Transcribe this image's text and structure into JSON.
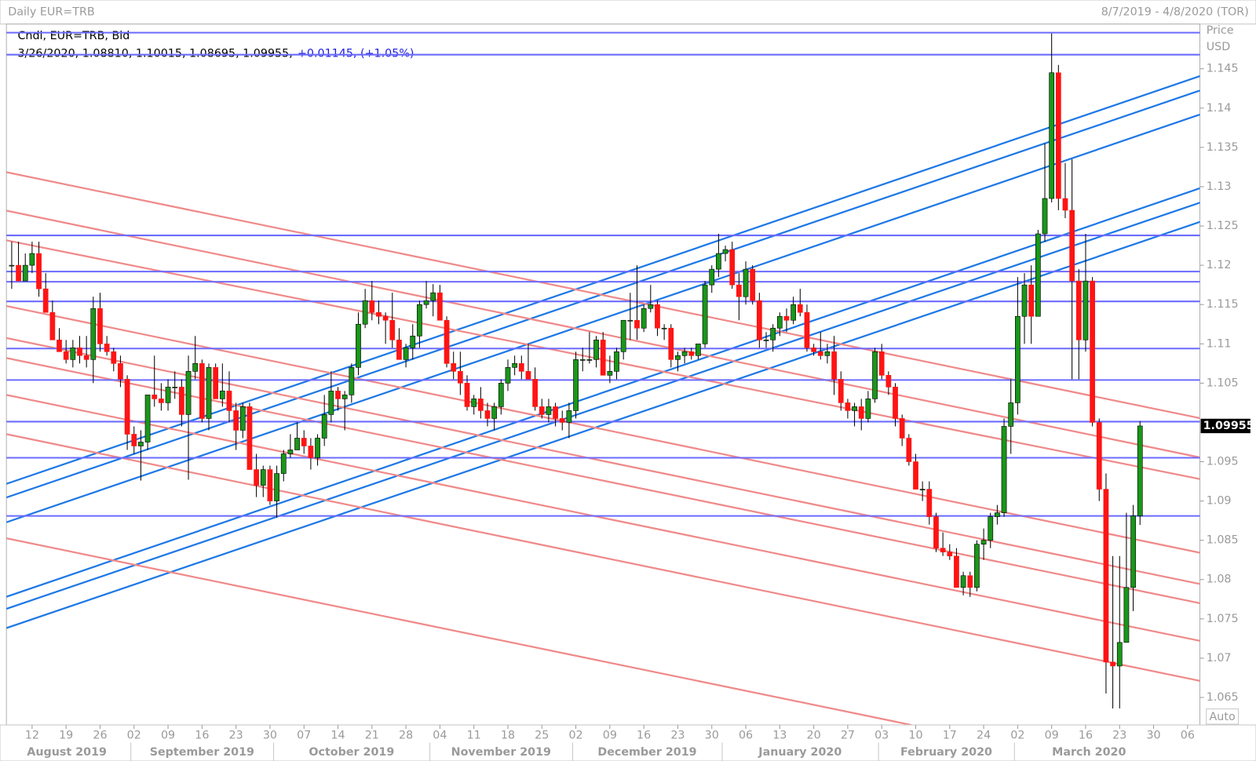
{
  "chart_data": {
    "type": "candlestick",
    "title": "Daily EUR=TRB",
    "date_range": "8/7/2019 - 4/8/2020 (TOR)",
    "legend_name": "Cndl, EUR=TRB, Bid",
    "ohlc_line": "3/26/2020, 1.08810, 1.10015, 1.08695, 1.09955,",
    "change": "+0.01145, (+1.05%)",
    "y_axis_title": "Price",
    "y_axis_unit": "USD",
    "scale_button": "Auto",
    "up_color": "#1a961a",
    "down_color": "#ff1414",
    "level_color": "#6b6bff",
    "x": [
      "2019-08-07",
      "2019-08-08",
      "2019-08-09",
      "2019-08-12",
      "2019-08-13",
      "2019-08-14",
      "2019-08-15",
      "2019-08-16",
      "2019-08-19",
      "2019-08-20",
      "2019-08-21",
      "2019-08-22",
      "2019-08-23",
      "2019-08-26",
      "2019-08-27",
      "2019-08-28",
      "2019-08-29",
      "2019-08-30",
      "2019-09-02",
      "2019-09-03",
      "2019-09-04",
      "2019-09-05",
      "2019-09-06",
      "2019-09-09",
      "2019-09-10",
      "2019-09-11",
      "2019-09-12",
      "2019-09-13",
      "2019-09-16",
      "2019-09-17",
      "2019-09-18",
      "2019-09-19",
      "2019-09-20",
      "2019-09-23",
      "2019-09-24",
      "2019-09-25",
      "2019-09-26",
      "2019-09-27",
      "2019-09-30",
      "2019-10-01",
      "2019-10-02",
      "2019-10-03",
      "2019-10-04",
      "2019-10-07",
      "2019-10-08",
      "2019-10-09",
      "2019-10-10",
      "2019-10-11",
      "2019-10-14",
      "2019-10-15",
      "2019-10-16",
      "2019-10-17",
      "2019-10-18",
      "2019-10-21",
      "2019-10-22",
      "2019-10-23",
      "2019-10-24",
      "2019-10-25",
      "2019-10-28",
      "2019-10-29",
      "2019-10-30",
      "2019-10-31",
      "2019-11-01",
      "2019-11-04",
      "2019-11-05",
      "2019-11-06",
      "2019-11-07",
      "2019-11-08",
      "2019-11-11",
      "2019-11-12",
      "2019-11-13",
      "2019-11-14",
      "2019-11-15",
      "2019-11-18",
      "2019-11-19",
      "2019-11-20",
      "2019-11-21",
      "2019-11-22",
      "2019-11-25",
      "2019-11-26",
      "2019-11-27",
      "2019-11-28",
      "2019-11-29",
      "2019-12-02",
      "2019-12-03",
      "2019-12-04",
      "2019-12-05",
      "2019-12-06",
      "2019-12-09",
      "2019-12-10",
      "2019-12-11",
      "2019-12-12",
      "2019-12-13",
      "2019-12-16",
      "2019-12-17",
      "2019-12-18",
      "2019-12-19",
      "2019-12-20",
      "2019-12-23",
      "2019-12-24",
      "2019-12-25",
      "2019-12-26",
      "2019-12-27",
      "2019-12-30",
      "2019-12-31",
      "2020-01-01",
      "2020-01-02",
      "2020-01-03",
      "2020-01-06",
      "2020-01-07",
      "2020-01-08",
      "2020-01-09",
      "2020-01-10",
      "2020-01-13",
      "2020-01-14",
      "2020-01-15",
      "2020-01-16",
      "2020-01-17",
      "2020-01-20",
      "2020-01-21",
      "2020-01-22",
      "2020-01-23",
      "2020-01-24",
      "2020-01-27",
      "2020-01-28",
      "2020-01-29",
      "2020-01-30",
      "2020-01-31",
      "2020-02-03",
      "2020-02-04",
      "2020-02-05",
      "2020-02-06",
      "2020-02-07",
      "2020-02-10",
      "2020-02-11",
      "2020-02-12",
      "2020-02-13",
      "2020-02-14",
      "2020-02-17",
      "2020-02-18",
      "2020-02-19",
      "2020-02-20",
      "2020-02-21",
      "2020-02-24",
      "2020-02-25",
      "2020-02-26",
      "2020-02-27",
      "2020-02-28",
      "2020-03-02",
      "2020-03-03",
      "2020-03-04",
      "2020-03-05",
      "2020-03-06",
      "2020-03-09",
      "2020-03-10",
      "2020-03-11",
      "2020-03-12",
      "2020-03-13",
      "2020-03-16",
      "2020-03-17",
      "2020-03-18",
      "2020-03-19",
      "2020-03-20",
      "2020-03-23",
      "2020-03-24",
      "2020-03-25",
      "2020-03-26"
    ],
    "open": [
      1.12,
      1.12,
      1.118,
      1.12,
      1.1215,
      1.117,
      1.114,
      1.1105,
      1.109,
      1.108,
      1.1095,
      1.1085,
      1.108,
      1.1145,
      1.11,
      1.109,
      1.1075,
      1.1055,
      1.0985,
      1.097,
      1.0975,
      1.1035,
      1.103,
      1.1025,
      1.1045,
      1.1045,
      1.101,
      1.1065,
      1.1075,
      1.1005,
      1.107,
      1.103,
      1.104,
      1.1015,
      1.099,
      1.102,
      1.094,
      1.092,
      1.094,
      1.09,
      1.0935,
      1.096,
      1.0965,
      1.098,
      1.097,
      1.0955,
      1.098,
      1.101,
      1.104,
      1.103,
      1.1035,
      1.107,
      1.1125,
      1.1155,
      1.114,
      1.1135,
      1.113,
      1.1105,
      1.108,
      1.1095,
      1.111,
      1.115,
      1.1155,
      1.1165,
      1.113,
      1.1075,
      1.1065,
      1.105,
      1.102,
      1.103,
      1.1015,
      1.1005,
      1.102,
      1.105,
      1.107,
      1.1075,
      1.1065,
      1.1055,
      1.102,
      1.101,
      1.102,
      1.1005,
      1.1,
      1.1015,
      1.108,
      1.108,
      1.108,
      1.1105,
      1.106,
      1.1065,
      1.109,
      1.113,
      1.113,
      1.112,
      1.1145,
      1.115,
      1.112,
      1.112,
      1.108,
      1.1085,
      1.109,
      1.1085,
      1.11,
      1.1175,
      1.1195,
      1.1215,
      1.122,
      1.1175,
      1.116,
      1.1195,
      1.1155,
      1.1105,
      1.1105,
      1.112,
      1.1135,
      1.113,
      1.115,
      1.114,
      1.1095,
      1.109,
      1.1085,
      1.109,
      1.1055,
      1.1025,
      1.1015,
      1.102,
      1.1005,
      1.103,
      1.109,
      1.106,
      1.1045,
      1.1005,
      1.098,
      1.095,
      1.0915,
      1.0915,
      1.088,
      1.084,
      1.0835,
      1.083,
      1.079,
      1.0805,
      1.079,
      1.0845,
      1.085,
      1.088,
      1.0885,
      1.0995,
      1.1025,
      1.1135,
      1.1175,
      1.1135,
      1.124,
      1.1285,
      1.1445,
      1.1285,
      1.127,
      1.118,
      1.1105,
      1.118,
      1.1,
      1.0915,
      1.0695,
      1.069,
      1.072,
      1.079,
      1.0881
    ],
    "high": [
      1.123,
      1.123,
      1.1215,
      1.123,
      1.123,
      1.119,
      1.1155,
      1.112,
      1.1105,
      1.1105,
      1.111,
      1.111,
      1.116,
      1.1165,
      1.111,
      1.1095,
      1.1085,
      1.106,
      1.0995,
      1.099,
      1.1035,
      1.1085,
      1.105,
      1.1055,
      1.1065,
      1.1055,
      1.1085,
      1.111,
      1.108,
      1.1075,
      1.1075,
      1.1075,
      1.1065,
      1.1025,
      1.1025,
      1.1025,
      1.096,
      1.0945,
      1.0945,
      1.0945,
      1.0965,
      1.0985,
      1.1,
      1.099,
      1.098,
      1.0985,
      1.1035,
      1.1065,
      1.1045,
      1.104,
      1.1075,
      1.114,
      1.117,
      1.118,
      1.1155,
      1.114,
      1.1165,
      1.112,
      1.11,
      1.1125,
      1.1155,
      1.118,
      1.1176,
      1.1175,
      1.1135,
      1.109,
      1.109,
      1.106,
      1.1035,
      1.1045,
      1.1025,
      1.1025,
      1.1055,
      1.108,
      1.1085,
      1.1085,
      1.11,
      1.107,
      1.103,
      1.103,
      1.1025,
      1.1015,
      1.1025,
      1.109,
      1.1095,
      1.1115,
      1.111,
      1.1115,
      1.1085,
      1.1095,
      1.113,
      1.1165,
      1.12,
      1.115,
      1.1175,
      1.1155,
      1.1125,
      1.1125,
      1.109,
      1.1095,
      1.1095,
      1.11,
      1.118,
      1.12,
      1.124,
      1.1225,
      1.123,
      1.119,
      1.1205,
      1.12,
      1.1165,
      1.1115,
      1.1125,
      1.114,
      1.1145,
      1.116,
      1.117,
      1.115,
      1.11,
      1.1115,
      1.11,
      1.111,
      1.1065,
      1.103,
      1.1025,
      1.103,
      1.104,
      1.1095,
      1.11,
      1.1065,
      1.105,
      1.101,
      1.0985,
      1.096,
      1.0925,
      1.0925,
      1.0885,
      1.086,
      1.0845,
      1.084,
      1.081,
      1.081,
      1.085,
      1.0865,
      1.0885,
      1.0895,
      1.1005,
      1.1055,
      1.1185,
      1.119,
      1.12,
      1.1245,
      1.1355,
      1.1495,
      1.1455,
      1.133,
      1.1335,
      1.1195,
      1.124,
      1.1185,
      1.1005,
      1.0935,
      1.083,
      1.083,
      1.0885,
      1.0895,
      1.10015
    ],
    "low": [
      1.117,
      1.118,
      1.118,
      1.119,
      1.116,
      1.114,
      1.111,
      1.109,
      1.1075,
      1.107,
      1.1075,
      1.107,
      1.105,
      1.109,
      1.1085,
      1.1065,
      1.1045,
      1.0965,
      1.096,
      1.0926,
      1.0965,
      1.102,
      1.1015,
      1.1015,
      1.103,
      1.0995,
      1.0927,
      1.1055,
      1.1,
      1.099,
      1.103,
      1.102,
      1.1,
      1.0965,
      1.098,
      1.094,
      1.0905,
      1.0905,
      1.0895,
      1.0879,
      1.0925,
      1.0955,
      1.0965,
      1.096,
      1.094,
      1.0945,
      1.097,
      1.1,
      1.1015,
      1.099,
      1.1025,
      1.106,
      1.112,
      1.113,
      1.1125,
      1.11,
      1.1095,
      1.108,
      1.107,
      1.108,
      1.1095,
      1.1145,
      1.1135,
      1.113,
      1.107,
      1.1055,
      1.1035,
      1.1015,
      1.101,
      1.1005,
      1.0995,
      1.099,
      1.101,
      1.104,
      1.106,
      1.1055,
      1.1055,
      1.1015,
      1.1005,
      1.1,
      1.0995,
      1.099,
      1.098,
      1.1005,
      1.1065,
      1.1075,
      1.107,
      1.106,
      1.105,
      1.1055,
      1.108,
      1.1105,
      1.1105,
      1.1115,
      1.114,
      1.111,
      1.1105,
      1.107,
      1.1065,
      1.1075,
      1.108,
      1.108,
      1.1095,
      1.1165,
      1.1185,
      1.1205,
      1.117,
      1.113,
      1.115,
      1.115,
      1.1095,
      1.1095,
      1.109,
      1.111,
      1.1115,
      1.1125,
      1.1135,
      1.109,
      1.1085,
      1.108,
      1.1075,
      1.1035,
      1.1015,
      1.1005,
      1.0995,
      1.099,
      1.1,
      1.1025,
      1.1055,
      1.1035,
      1.0995,
      1.097,
      1.0945,
      1.0915,
      1.09,
      1.087,
      1.0835,
      1.083,
      1.0825,
      1.079,
      1.078,
      1.0778,
      1.0785,
      1.0825,
      1.084,
      1.087,
      1.088,
      1.096,
      1.101,
      1.11,
      1.11,
      1.1135,
      1.123,
      1.128,
      1.127,
      1.126,
      1.1055,
      1.1055,
      1.109,
      1.0995,
      1.09,
      1.0655,
      1.0636,
      1.0636,
      1.072,
      1.076,
      1.08695
    ],
    "close": [
      1.12,
      1.118,
      1.12,
      1.1215,
      1.117,
      1.114,
      1.1105,
      1.109,
      1.108,
      1.1095,
      1.1085,
      1.108,
      1.1145,
      1.11,
      1.109,
      1.1075,
      1.1055,
      1.0985,
      1.097,
      1.0975,
      1.1035,
      1.103,
      1.1025,
      1.1045,
      1.1045,
      1.101,
      1.1065,
      1.1075,
      1.1005,
      1.107,
      1.103,
      1.104,
      1.1015,
      1.099,
      1.102,
      1.094,
      1.092,
      1.094,
      1.09,
      1.0935,
      1.096,
      1.0965,
      1.098,
      1.097,
      1.0955,
      1.098,
      1.101,
      1.104,
      1.103,
      1.1035,
      1.107,
      1.1125,
      1.1155,
      1.114,
      1.1135,
      1.113,
      1.1105,
      1.108,
      1.1095,
      1.111,
      1.115,
      1.1155,
      1.1165,
      1.113,
      1.1075,
      1.1065,
      1.105,
      1.102,
      1.103,
      1.1015,
      1.1005,
      1.102,
      1.105,
      1.107,
      1.1075,
      1.1065,
      1.1055,
      1.102,
      1.101,
      1.102,
      1.1005,
      1.1,
      1.1015,
      1.108,
      1.108,
      1.108,
      1.1105,
      1.106,
      1.1065,
      1.109,
      1.113,
      1.113,
      1.112,
      1.1145,
      1.115,
      1.112,
      1.112,
      1.108,
      1.1085,
      1.109,
      1.1085,
      1.11,
      1.1175,
      1.1195,
      1.1215,
      1.122,
      1.1175,
      1.116,
      1.1195,
      1.1155,
      1.1105,
      1.1105,
      1.112,
      1.1135,
      1.113,
      1.115,
      1.114,
      1.1095,
      1.109,
      1.1085,
      1.109,
      1.1055,
      1.1025,
      1.1015,
      1.102,
      1.1005,
      1.103,
      1.109,
      1.106,
      1.1045,
      1.1005,
      1.098,
      1.095,
      1.0915,
      1.0915,
      1.088,
      1.084,
      1.0835,
      1.083,
      1.079,
      1.0805,
      1.079,
      1.0845,
      1.085,
      1.088,
      1.0885,
      1.0995,
      1.1025,
      1.1135,
      1.1175,
      1.1135,
      1.124,
      1.1285,
      1.1445,
      1.1285,
      1.127,
      1.118,
      1.1105,
      1.118,
      1.1,
      1.0915,
      1.0695,
      1.069,
      1.072,
      1.079,
      1.0881,
      1.09955
    ],
    "levels": [
      1.1496,
      1.1468,
      1.1238,
      1.1192,
      1.1179,
      1.1154,
      1.1094,
      1.1054,
      1.1001,
      1.0955,
      1.0881
    ],
    "ylim": [
      1.0615,
      1.1507
    ],
    "yticks": [
      1.065,
      1.07,
      1.075,
      1.08,
      1.085,
      1.09,
      1.095,
      1.105,
      1.11,
      1.115,
      1.12,
      1.125,
      1.13,
      1.135,
      1.14,
      1.145
    ],
    "xticks": [
      {
        "value": "2019-08-12",
        "label": "12"
      },
      {
        "value": "2019-08-19",
        "label": "19"
      },
      {
        "value": "2019-08-26",
        "label": "26"
      },
      {
        "value": "2019-09-02",
        "label": "02"
      },
      {
        "value": "2019-09-09",
        "label": "09"
      },
      {
        "value": "2019-09-16",
        "label": "16"
      },
      {
        "value": "2019-09-23",
        "label": "23"
      },
      {
        "value": "2019-09-30",
        "label": "30"
      },
      {
        "value": "2019-10-07",
        "label": "07"
      },
      {
        "value": "2019-10-14",
        "label": "14"
      },
      {
        "value": "2019-10-21",
        "label": "21"
      },
      {
        "value": "2019-10-28",
        "label": "28"
      },
      {
        "value": "2019-11-04",
        "label": "04"
      },
      {
        "value": "2019-11-11",
        "label": "11"
      },
      {
        "value": "2019-11-18",
        "label": "18"
      },
      {
        "value": "2019-11-25",
        "label": "25"
      },
      {
        "value": "2019-12-02",
        "label": "02"
      },
      {
        "value": "2019-12-09",
        "label": "09"
      },
      {
        "value": "2019-12-16",
        "label": "16"
      },
      {
        "value": "2019-12-23",
        "label": "23"
      },
      {
        "value": "2019-12-30",
        "label": "30"
      },
      {
        "value": "2020-01-06",
        "label": "06"
      },
      {
        "value": "2020-01-13",
        "label": "13"
      },
      {
        "value": "2020-01-20",
        "label": "20"
      },
      {
        "value": "2020-01-27",
        "label": "27"
      },
      {
        "value": "2020-02-03",
        "label": "03"
      },
      {
        "value": "2020-02-10",
        "label": "10"
      },
      {
        "value": "2020-02-17",
        "label": "17"
      },
      {
        "value": "2020-02-24",
        "label": "24"
      },
      {
        "value": "2020-03-02",
        "label": "02"
      },
      {
        "value": "2020-03-09",
        "label": "09"
      },
      {
        "value": "2020-03-16",
        "label": "16"
      },
      {
        "value": "2020-03-23",
        "label": "23"
      },
      {
        "value": "2020-03-30",
        "label": "30"
      },
      {
        "value": "2020-04-06",
        "label": "06"
      }
    ],
    "months": [
      {
        "value": "2019-08",
        "label": "August 2019"
      },
      {
        "value": "2019-09",
        "label": "September 2019"
      },
      {
        "value": "2019-10",
        "label": "October 2019"
      },
      {
        "value": "2019-11",
        "label": "November 2019"
      },
      {
        "value": "2019-12",
        "label": "December 2019"
      },
      {
        "value": "2020-01",
        "label": "January 2020"
      },
      {
        "value": "2020-02",
        "label": "February 2020"
      },
      {
        "value": "2020-03",
        "label": "March 2020"
      }
    ]
  }
}
